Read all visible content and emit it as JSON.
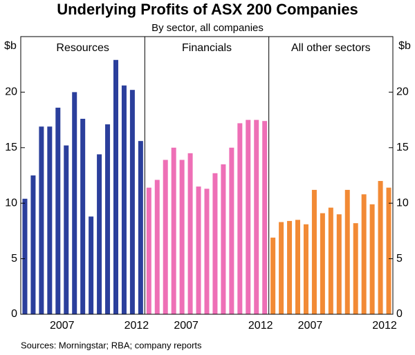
{
  "title": "Underlying Profits of ASX 200 Companies",
  "subtitle": "By sector, all companies",
  "source": "Sources: Morningstar; RBA; company reports",
  "chart_data": [
    {
      "type": "bar",
      "title": "Resources",
      "ylabel": "$b",
      "color": "#2b3f9c",
      "categories": [
        null,
        null,
        null,
        null,
        "2007",
        null,
        null,
        null,
        null,
        null,
        null,
        null,
        null,
        "2012",
        null
      ],
      "values": [
        10.4,
        12.5,
        16.9,
        16.9,
        18.6,
        15.2,
        20.0,
        17.6,
        8.8,
        14.4,
        17.1,
        22.9,
        20.6,
        20.2,
        15.6
      ],
      "ylim": [
        0,
        25
      ],
      "yticks": [
        0,
        5,
        10,
        15,
        20
      ]
    },
    {
      "type": "bar",
      "title": "Financials",
      "color": "#ee6fb6",
      "categories": [
        null,
        null,
        null,
        null,
        "2007",
        null,
        null,
        null,
        null,
        null,
        null,
        null,
        null,
        "2012",
        null
      ],
      "values": [
        11.4,
        12.1,
        13.9,
        15.0,
        13.9,
        14.5,
        11.5,
        11.3,
        12.7,
        13.5,
        15.0,
        17.2,
        17.5,
        17.5,
        17.4
      ],
      "ylim": [
        0,
        25
      ]
    },
    {
      "type": "bar",
      "title": "All other sectors",
      "ylabel": "$b",
      "color": "#f28a35",
      "categories": [
        null,
        null,
        null,
        null,
        "2007",
        null,
        null,
        null,
        null,
        null,
        null,
        null,
        null,
        "2012",
        null
      ],
      "values": [
        6.9,
        8.3,
        8.4,
        8.5,
        8.1,
        11.2,
        9.1,
        9.6,
        9.0,
        11.2,
        8.2,
        10.8,
        9.9,
        12.0,
        11.4
      ],
      "ylim": [
        0,
        25
      ],
      "yticks": [
        0,
        5,
        10,
        15,
        20
      ]
    }
  ]
}
